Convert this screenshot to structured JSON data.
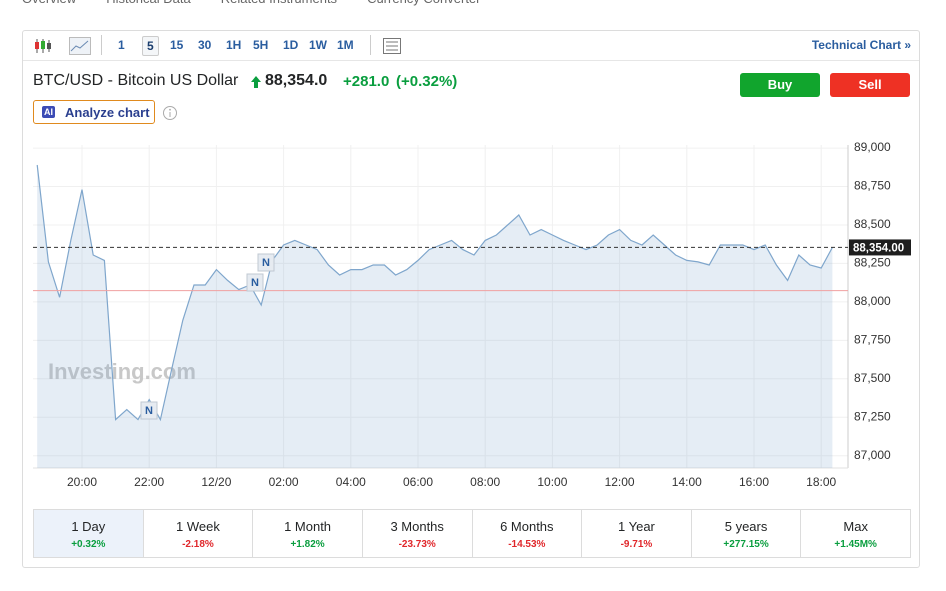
{
  "nav": [
    "Overview",
    "Historical Data",
    "Related Instruments",
    "Currency Converter"
  ],
  "toolbar": {
    "intervals": [
      "1",
      "5",
      "15",
      "30",
      "1H",
      "5H",
      "1D",
      "1W",
      "1M"
    ],
    "technical_chart": "Technical Chart »"
  },
  "header": {
    "name": "BTC/USD - Bitcoin US Dollar",
    "price": "88,354.0",
    "change": "+281.0",
    "change_pct": "(+0.32%)",
    "buy": "Buy",
    "sell": "Sell",
    "ai_badge": "AI",
    "analyze": "Analyze chart"
  },
  "chart_data": {
    "type": "line",
    "categories": [
      null,
      null,
      null,
      null,
      "20:00",
      null,
      null,
      null,
      null,
      null,
      "22:00",
      null,
      null,
      null,
      null,
      null,
      "12/20",
      null,
      null,
      null,
      null,
      null,
      "02:00",
      null,
      null,
      null,
      null,
      null,
      "04:00",
      null,
      null,
      null,
      null,
      null,
      "06:00",
      null,
      null,
      null,
      null,
      null,
      "08:00",
      null,
      null,
      null,
      null,
      null,
      "10:00",
      null,
      null,
      null,
      null,
      null,
      "12:00",
      null,
      null,
      null,
      null,
      null,
      "14:00",
      null,
      null,
      null,
      null,
      null,
      "16:00",
      null,
      null,
      null,
      null,
      null,
      "18:00",
      null
    ],
    "series": [
      {
        "name": "BTC/USD",
        "color": "#7fa6cc",
        "values": [
          88890,
          88260,
          88030,
          88400,
          88730,
          88305,
          88270,
          87235,
          87300,
          87235,
          87365,
          87235,
          87560,
          87880,
          88110,
          88110,
          88210,
          88140,
          88080,
          88110,
          87980,
          88270,
          88370,
          88400,
          88370,
          88340,
          88240,
          88175,
          88210,
          88210,
          88240,
          88240,
          88175,
          88210,
          88270,
          88340,
          88370,
          88400,
          88340,
          88305,
          88400,
          88435,
          88500,
          88565,
          88435,
          88470,
          88435,
          88400,
          88370,
          88340,
          88370,
          88435,
          88470,
          88400,
          88370,
          88435,
          88370,
          88305,
          88270,
          88260,
          88240,
          88370,
          88370,
          88370,
          88340,
          88370,
          88240,
          88140,
          88305,
          88240,
          88220,
          88354
        ]
      }
    ],
    "ylim": [
      86920,
      89020
    ],
    "yticks": [
      {
        "value": 87000,
        "label": "87,000"
      },
      {
        "value": 87250,
        "label": "87,250"
      },
      {
        "value": 87500,
        "label": "87,500"
      },
      {
        "value": 87750,
        "label": "87,750"
      },
      {
        "value": 88000,
        "label": "88,000"
      },
      {
        "value": 88250,
        "label": "88,250"
      },
      {
        "value": 88500,
        "label": "88,500"
      },
      {
        "value": 88750,
        "label": "88,750"
      },
      {
        "value": 89000,
        "label": "89,000"
      }
    ],
    "grid": true,
    "price_line": {
      "value": 88354,
      "label": "88,354.00"
    },
    "reference_line": 88073,
    "watermark": "Investing.com",
    "news_markers": [
      "N",
      "N",
      "N"
    ]
  },
  "periods": [
    {
      "name": "1 Day",
      "change": "+0.32%"
    },
    {
      "name": "1 Week",
      "change": "-2.18%"
    },
    {
      "name": "1 Month",
      "change": "+1.82%"
    },
    {
      "name": "3 Months",
      "change": "-23.73%"
    },
    {
      "name": "6 Months",
      "change": "-14.53%"
    },
    {
      "name": "1 Year",
      "change": "-9.71%"
    },
    {
      "name": "5 years",
      "change": "+277.15%"
    },
    {
      "name": "Max",
      "change": "+1.45M%"
    }
  ]
}
